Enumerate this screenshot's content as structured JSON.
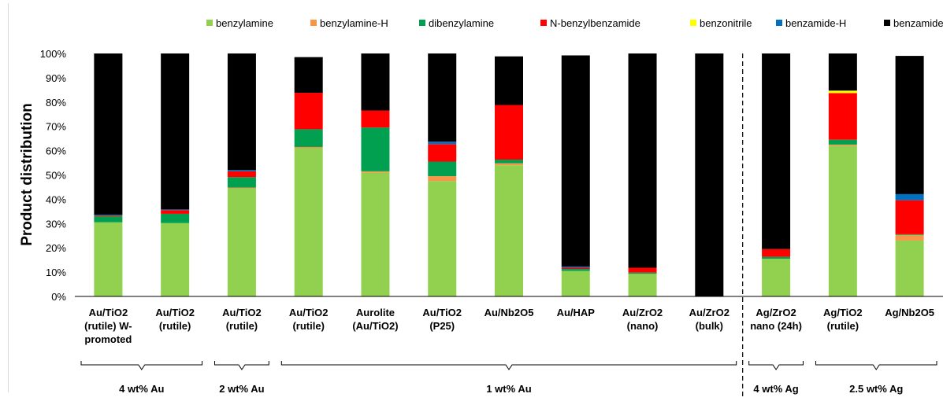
{
  "chart_data": {
    "type": "bar",
    "stacked": true,
    "title": "",
    "xlabel": "",
    "ylabel": "Product distribution",
    "ylim": [
      0,
      100
    ],
    "yticks": [
      "0%",
      "10%",
      "20%",
      "30%",
      "40%",
      "50%",
      "60%",
      "70%",
      "80%",
      "90%",
      "100%"
    ],
    "legend_position": "top",
    "categories": [
      [
        "Au/TiO2",
        "(rutile) W-",
        "promoted"
      ],
      [
        "Au/TiO2",
        "(rutile)"
      ],
      [
        "Au/TiO2",
        "(rutile)"
      ],
      [
        "Au/TiO2",
        "(rutile)"
      ],
      [
        "Aurolite",
        "(Au/TiO2)"
      ],
      [
        "Au/TiO2",
        "(P25)"
      ],
      [
        "Au/Nb2O5"
      ],
      [
        "Au/HAP"
      ],
      [
        "Au/ZrO2",
        "(nano)"
      ],
      [
        "Au/ZrO2",
        "(bulk)"
      ],
      [
        "Ag/ZrO2",
        "nano (24h)"
      ],
      [
        "Ag/TiO2",
        "(rutile)"
      ],
      [
        "Ag/Nb2O5"
      ]
    ],
    "series": [
      {
        "name": "benzylamine",
        "color": "#92d050",
        "values": [
          30.5,
          30.2,
          44.5,
          61.0,
          51.0,
          47.5,
          54.0,
          10.5,
          9.3,
          0.0,
          15.5,
          62.0,
          23.0
        ]
      },
      {
        "name": "benzylamine-H",
        "color": "#f79646",
        "values": [
          0.0,
          0.0,
          0.3,
          0.5,
          0.5,
          2.0,
          0.8,
          0.0,
          0.0,
          0.0,
          0.0,
          0.5,
          2.3
        ]
      },
      {
        "name": "dibenzylamine",
        "color": "#00a050",
        "values": [
          2.5,
          3.8,
          4.3,
          7.3,
          18.0,
          6.0,
          1.5,
          0.8,
          0.5,
          0.0,
          0.8,
          2.0,
          0.3
        ]
      },
      {
        "name": "N-benzylbenzamide",
        "color": "#ff0000",
        "values": [
          0.3,
          1.5,
          2.4,
          15.0,
          7.0,
          7.2,
          22.5,
          0.5,
          2.0,
          0.0,
          3.2,
          19.2,
          14.0
        ]
      },
      {
        "name": "benzonitrile",
        "color": "#ffff00",
        "values": [
          0.0,
          0.0,
          0.0,
          0.0,
          0.0,
          0.0,
          0.0,
          0.0,
          0.0,
          0.0,
          0.0,
          1.0,
          0.0
        ]
      },
      {
        "name": "benzamide-H",
        "color": "#0070c0",
        "values": [
          0.3,
          0.3,
          0.5,
          0.0,
          0.0,
          1.0,
          0.0,
          0.5,
          0.0,
          0.0,
          0.0,
          0.0,
          2.5
        ]
      },
      {
        "name": "benzamide",
        "color": "#000000",
        "values": [
          66.4,
          64.2,
          48.0,
          14.7,
          23.5,
          36.3,
          20.0,
          86.9,
          88.2,
          100.0,
          80.5,
          15.3,
          56.9
        ]
      }
    ],
    "groups": [
      {
        "label": "4 wt% Au",
        "from": 0,
        "to": 1
      },
      {
        "label": "2 wt% Au",
        "from": 2,
        "to": 2
      },
      {
        "label": "1 wt% Au",
        "from": 3,
        "to": 9
      },
      {
        "label": "4 wt% Ag",
        "from": 10,
        "to": 10
      },
      {
        "label": "2.5 wt% Ag",
        "from": 11,
        "to": 12
      }
    ],
    "separator_after_index": 9
  }
}
